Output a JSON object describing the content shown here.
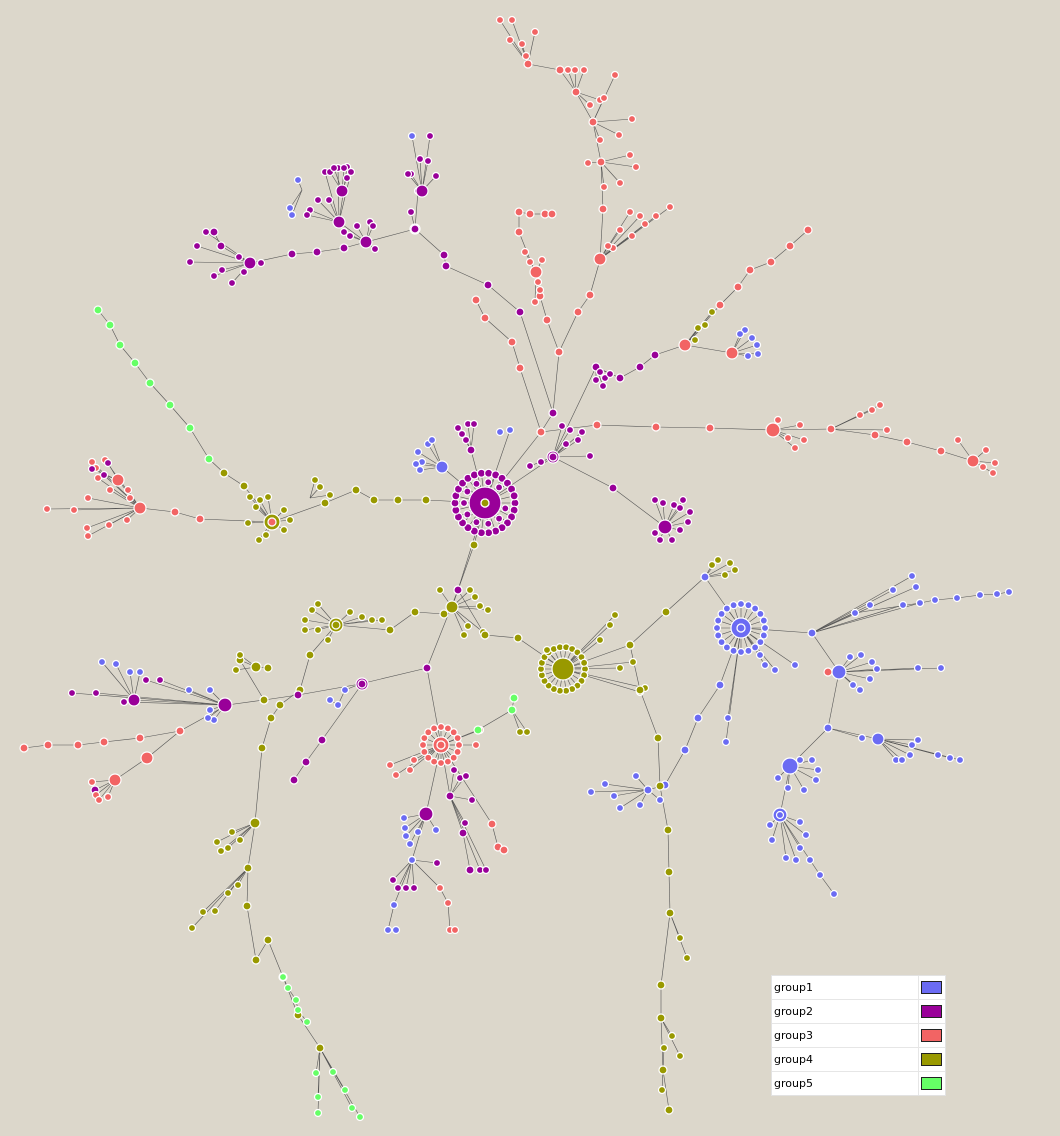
{
  "legend": [
    {
      "label": "group1",
      "color": "#6b6bf3"
    },
    {
      "label": "group2",
      "color": "#990099"
    },
    {
      "label": "group3",
      "color": "#f26464"
    },
    {
      "label": "group4",
      "color": "#999900"
    },
    {
      "label": "group5",
      "color": "#66ff66"
    }
  ]
}
